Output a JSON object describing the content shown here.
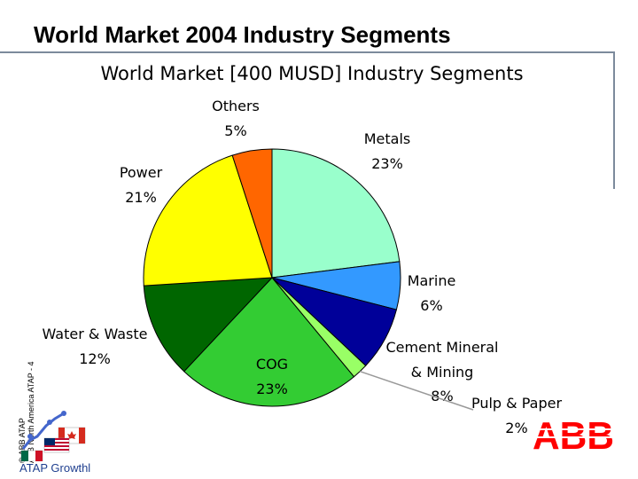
{
  "slide": {
    "title": "World Market 2004 Industry Segments",
    "side_note_1": "© ABB ATAP",
    "side_note_2": "ABB North America ATAP - 4",
    "footer_label": "ATAP Growthl",
    "logo_text": "ABB"
  },
  "chart_data": {
    "type": "pie",
    "title": "World Market [400 MUSD] Industry Segments",
    "unit": "%",
    "slices": [
      {
        "label": "Metals",
        "value": 23,
        "color": "#99ffcc"
      },
      {
        "label": "Marine",
        "value": 6,
        "color": "#3399ff"
      },
      {
        "label": "Cement Mineral & Mining",
        "value": 8,
        "color": "#000099"
      },
      {
        "label": "Pulp & Paper",
        "value": 2,
        "color": "#99ff66"
      },
      {
        "label": "COG",
        "value": 23,
        "color": "#33cc33"
      },
      {
        "label": "Water & Waste",
        "value": 12,
        "color": "#006600"
      },
      {
        "label": "Power",
        "value": 21,
        "color": "#ffff00"
      },
      {
        "label": "Others",
        "value": 5,
        "color": "#ff6600"
      }
    ],
    "start_angle": "12 o'clock",
    "direction": "clockwise",
    "legend": "none",
    "data_labels": "outside"
  }
}
